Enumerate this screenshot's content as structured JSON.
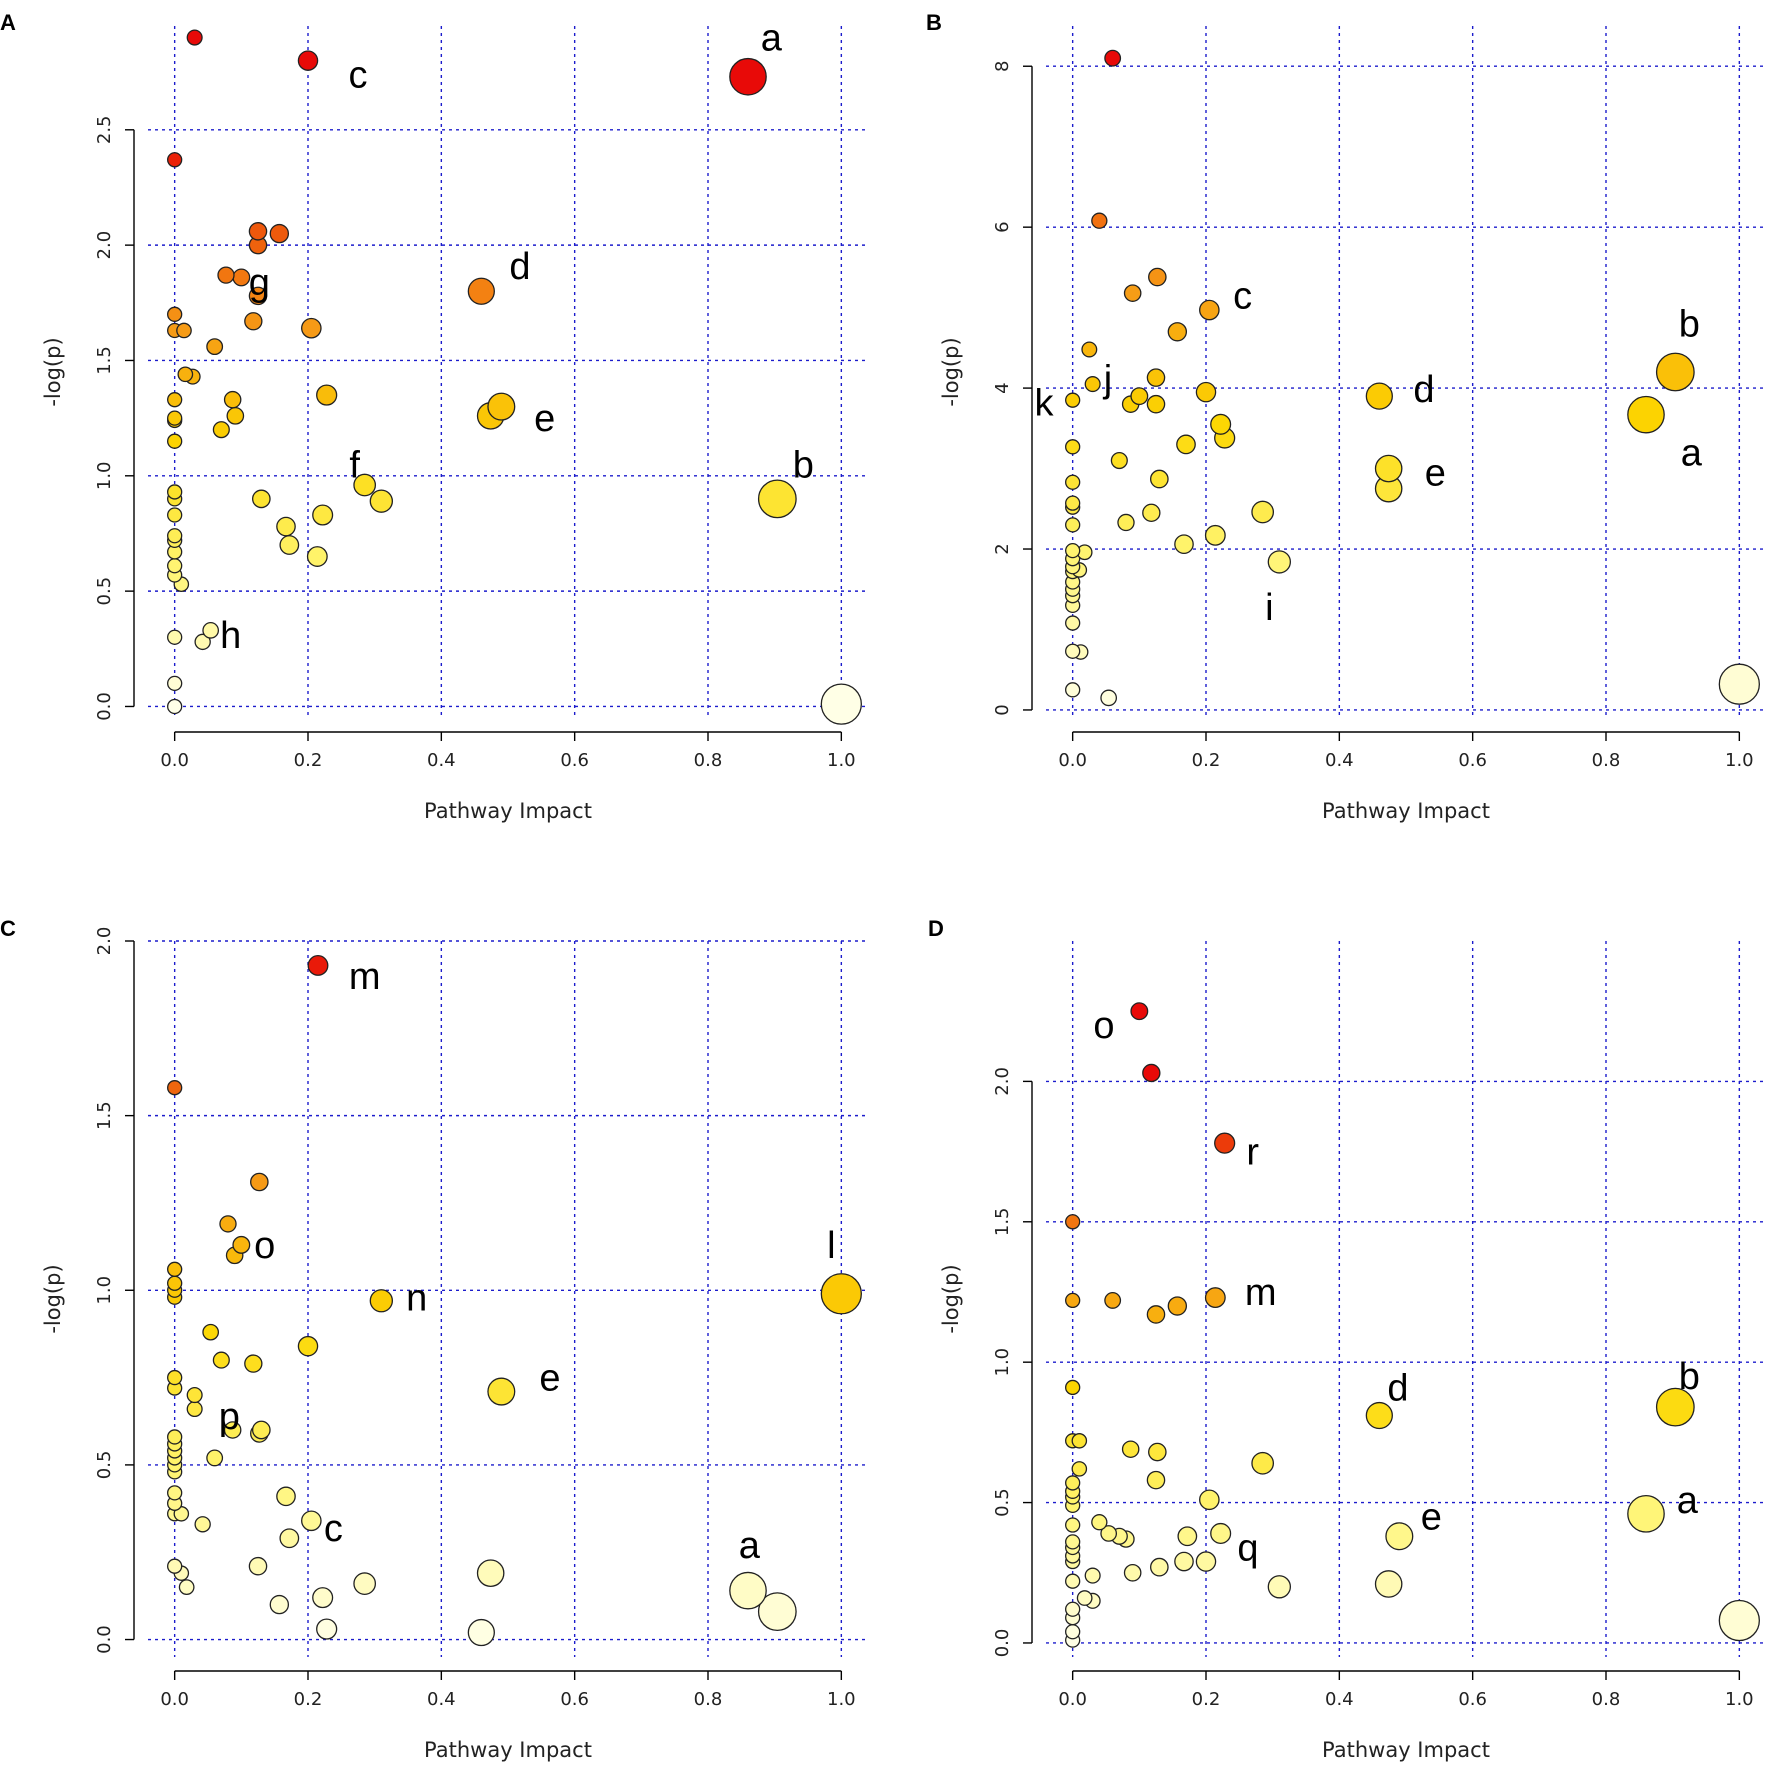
{
  "chart_data": [
    {
      "panel": "A",
      "type": "scatter",
      "xlabel": "Pathway Impact",
      "ylabel": "-log(p)",
      "xlim": [
        -0.04,
        1.04
      ],
      "ylim": [
        -0.05,
        2.95
      ],
      "xticks": [
        "0.0",
        "0.2",
        "0.4",
        "0.6",
        "0.8",
        "1.0"
      ],
      "yticks": [
        "0.0",
        "0.5",
        "1.0",
        "1.5",
        "2.0",
        "2.5"
      ],
      "xtick_values": [
        0,
        0.2,
        0.4,
        0.6,
        0.8,
        1.0
      ],
      "ytick_values": [
        0,
        0.5,
        1.0,
        1.5,
        2.0,
        2.5
      ],
      "points": [
        {
          "x": 0.03,
          "y": 2.9
        },
        {
          "x": 0.2,
          "y": 2.8
        },
        {
          "x": 0.86,
          "y": 2.73
        },
        {
          "x": 0.0,
          "y": 2.37
        },
        {
          "x": 0.125,
          "y": 2.06
        },
        {
          "x": 0.157,
          "y": 2.05
        },
        {
          "x": 0.125,
          "y": 2.0
        },
        {
          "x": 0.077,
          "y": 1.87
        },
        {
          "x": 0.1,
          "y": 1.86
        },
        {
          "x": 0.125,
          "y": 1.78
        },
        {
          "x": 0.46,
          "y": 1.8
        },
        {
          "x": 0.0,
          "y": 1.7
        },
        {
          "x": 0.118,
          "y": 1.67
        },
        {
          "x": 0.205,
          "y": 1.64
        },
        {
          "x": 0.0,
          "y": 1.63
        },
        {
          "x": 0.014,
          "y": 1.63
        },
        {
          "x": 0.06,
          "y": 1.56
        },
        {
          "x": 0.016,
          "y": 1.44
        },
        {
          "x": 0.027,
          "y": 1.43
        },
        {
          "x": 0.0,
          "y": 1.33
        },
        {
          "x": 0.087,
          "y": 1.33
        },
        {
          "x": 0.228,
          "y": 1.35
        },
        {
          "x": 0.49,
          "y": 1.3
        },
        {
          "x": 0.474,
          "y": 1.26
        },
        {
          "x": 0.091,
          "y": 1.26
        },
        {
          "x": 0.0,
          "y": 1.25
        },
        {
          "x": 0.0,
          "y": 1.24
        },
        {
          "x": 0.07,
          "y": 1.2
        },
        {
          "x": 0.0,
          "y": 1.15
        },
        {
          "x": 0.285,
          "y": 0.96
        },
        {
          "x": 0.31,
          "y": 0.89
        },
        {
          "x": 0.904,
          "y": 0.9
        },
        {
          "x": 0.0,
          "y": 0.93
        },
        {
          "x": 0.0,
          "y": 0.9
        },
        {
          "x": 0.13,
          "y": 0.9
        },
        {
          "x": 0.0,
          "y": 0.83
        },
        {
          "x": 0.222,
          "y": 0.83
        },
        {
          "x": 0.167,
          "y": 0.78
        },
        {
          "x": 0.0,
          "y": 0.74
        },
        {
          "x": 0.0,
          "y": 0.72
        },
        {
          "x": 0.172,
          "y": 0.7
        },
        {
          "x": 0.0,
          "y": 0.67
        },
        {
          "x": 0.214,
          "y": 0.65
        },
        {
          "x": 0.0,
          "y": 0.61
        },
        {
          "x": 0.0,
          "y": 0.57
        },
        {
          "x": 0.01,
          "y": 0.53
        },
        {
          "x": 0.054,
          "y": 0.33
        },
        {
          "x": 0.0,
          "y": 0.3
        },
        {
          "x": 0.042,
          "y": 0.28
        },
        {
          "x": 0.0,
          "y": 0.1
        },
        {
          "x": 0.0,
          "y": 0.0
        },
        {
          "x": 1.0,
          "y": 0.01
        }
      ],
      "annotations": [
        {
          "text": "a",
          "x": 0.895,
          "y": 2.9
        },
        {
          "text": "c",
          "x": 0.275,
          "y": 2.74
        },
        {
          "text": "d",
          "x": 0.518,
          "y": 1.91
        },
        {
          "text": "g",
          "x": 0.127,
          "y": 1.84
        },
        {
          "text": "e",
          "x": 0.555,
          "y": 1.25
        },
        {
          "text": "f",
          "x": 0.27,
          "y": 1.05
        },
        {
          "text": "b",
          "x": 0.943,
          "y": 1.05
        },
        {
          "text": "h",
          "x": 0.084,
          "y": 0.31
        }
      ]
    },
    {
      "panel": "B",
      "type": "scatter",
      "xlabel": "Pathway Impact",
      "ylabel": "-log(p)",
      "xlim": [
        -0.04,
        1.04
      ],
      "ylim": [
        -0.1,
        8.5
      ],
      "xticks": [
        "0.0",
        "0.2",
        "0.4",
        "0.6",
        "0.8",
        "1.0"
      ],
      "yticks": [
        "0",
        "2",
        "4",
        "6",
        "8"
      ],
      "xtick_values": [
        0,
        0.2,
        0.4,
        0.6,
        0.8,
        1.0
      ],
      "ytick_values": [
        0,
        2,
        4,
        6,
        8
      ],
      "points": [
        {
          "x": 0.06,
          "y": 8.1
        },
        {
          "x": 0.04,
          "y": 6.08
        },
        {
          "x": 0.127,
          "y": 5.38
        },
        {
          "x": 0.09,
          "y": 5.18
        },
        {
          "x": 0.205,
          "y": 4.97
        },
        {
          "x": 0.157,
          "y": 4.7
        },
        {
          "x": 0.025,
          "y": 4.48
        },
        {
          "x": 0.904,
          "y": 4.2
        },
        {
          "x": 0.125,
          "y": 4.13
        },
        {
          "x": 0.03,
          "y": 4.05
        },
        {
          "x": 0.2,
          "y": 3.95
        },
        {
          "x": 0.1,
          "y": 3.9
        },
        {
          "x": 0.46,
          "y": 3.9
        },
        {
          "x": 0.0,
          "y": 3.85
        },
        {
          "x": 0.087,
          "y": 3.8
        },
        {
          "x": 0.125,
          "y": 3.8
        },
        {
          "x": 0.86,
          "y": 3.67
        },
        {
          "x": 0.222,
          "y": 3.55
        },
        {
          "x": 0.228,
          "y": 3.38
        },
        {
          "x": 0.17,
          "y": 3.3
        },
        {
          "x": 0.0,
          "y": 3.27
        },
        {
          "x": 0.07,
          "y": 3.1
        },
        {
          "x": 0.474,
          "y": 3.0
        },
        {
          "x": 0.13,
          "y": 2.87
        },
        {
          "x": 0.0,
          "y": 2.83
        },
        {
          "x": 0.474,
          "y": 2.75
        },
        {
          "x": 0.0,
          "y": 2.57
        },
        {
          "x": 0.0,
          "y": 2.52
        },
        {
          "x": 0.285,
          "y": 2.46
        },
        {
          "x": 0.118,
          "y": 2.45
        },
        {
          "x": 0.08,
          "y": 2.33
        },
        {
          "x": 0.0,
          "y": 2.3
        },
        {
          "x": 0.214,
          "y": 2.17
        },
        {
          "x": 0.167,
          "y": 2.06
        },
        {
          "x": 0.0,
          "y": 1.98
        },
        {
          "x": 0.018,
          "y": 1.96
        },
        {
          "x": 0.0,
          "y": 1.88
        },
        {
          "x": 0.31,
          "y": 1.84
        },
        {
          "x": 0.0,
          "y": 1.78
        },
        {
          "x": 0.01,
          "y": 1.74
        },
        {
          "x": 0.0,
          "y": 1.72
        },
        {
          "x": 0.0,
          "y": 1.59
        },
        {
          "x": 0.0,
          "y": 1.5
        },
        {
          "x": 0.0,
          "y": 1.42
        },
        {
          "x": 0.0,
          "y": 1.3
        },
        {
          "x": 0.0,
          "y": 1.08
        },
        {
          "x": 0.0,
          "y": 0.73
        },
        {
          "x": 0.012,
          "y": 0.72
        },
        {
          "x": 1.0,
          "y": 0.32
        },
        {
          "x": 0.0,
          "y": 0.25
        },
        {
          "x": 0.054,
          "y": 0.15
        }
      ],
      "annotations": [
        {
          "text": "c",
          "x": 0.255,
          "y": 5.15
        },
        {
          "text": "b",
          "x": 0.925,
          "y": 4.8
        },
        {
          "text": "j",
          "x": 0.053,
          "y": 4.12
        },
        {
          "text": "d",
          "x": 0.527,
          "y": 3.99
        },
        {
          "text": "k",
          "x": -0.043,
          "y": 3.82
        },
        {
          "text": "a",
          "x": 0.928,
          "y": 3.2
        },
        {
          "text": "e",
          "x": 0.544,
          "y": 2.95
        },
        {
          "text": "i",
          "x": 0.295,
          "y": 1.28
        }
      ]
    },
    {
      "panel": "C",
      "type": "scatter",
      "xlabel": "Pathway Impact",
      "ylabel": "-log(p)",
      "xlim": [
        -0.04,
        1.04
      ],
      "ylim": [
        -0.05,
        2.0
      ],
      "xticks": [
        "0.0",
        "0.2",
        "0.4",
        "0.6",
        "0.8",
        "1.0"
      ],
      "yticks": [
        "0.0",
        "0.5",
        "1.0",
        "1.5",
        "2.0"
      ],
      "xtick_values": [
        0,
        0.2,
        0.4,
        0.6,
        0.8,
        1.0
      ],
      "ytick_values": [
        0,
        0.5,
        1.0,
        1.5,
        2.0
      ],
      "points": [
        {
          "x": 0.215,
          "y": 1.93
        },
        {
          "x": 0.0,
          "y": 1.58
        },
        {
          "x": 0.127,
          "y": 1.31
        },
        {
          "x": 0.08,
          "y": 1.19
        },
        {
          "x": 0.1,
          "y": 1.13
        },
        {
          "x": 0.09,
          "y": 1.1
        },
        {
          "x": 0.0,
          "y": 1.06
        },
        {
          "x": 0.0,
          "y": 1.02
        },
        {
          "x": 0.0,
          "y": 1.0
        },
        {
          "x": 0.0,
          "y": 0.98
        },
        {
          "x": 1.0,
          "y": 0.99
        },
        {
          "x": 0.31,
          "y": 0.97
        },
        {
          "x": 0.054,
          "y": 0.88
        },
        {
          "x": 0.2,
          "y": 0.84
        },
        {
          "x": 0.07,
          "y": 0.8
        },
        {
          "x": 0.118,
          "y": 0.79
        },
        {
          "x": 0.0,
          "y": 0.75
        },
        {
          "x": 0.0,
          "y": 0.72
        },
        {
          "x": 0.49,
          "y": 0.71
        },
        {
          "x": 0.03,
          "y": 0.7
        },
        {
          "x": 0.03,
          "y": 0.66
        },
        {
          "x": 0.13,
          "y": 0.6
        },
        {
          "x": 0.087,
          "y": 0.6
        },
        {
          "x": 0.127,
          "y": 0.59
        },
        {
          "x": 0.0,
          "y": 0.58
        },
        {
          "x": 0.0,
          "y": 0.56
        },
        {
          "x": 0.0,
          "y": 0.54
        },
        {
          "x": 0.0,
          "y": 0.52
        },
        {
          "x": 0.06,
          "y": 0.52
        },
        {
          "x": 0.0,
          "y": 0.5
        },
        {
          "x": 0.0,
          "y": 0.48
        },
        {
          "x": 0.0,
          "y": 0.42
        },
        {
          "x": 0.167,
          "y": 0.41
        },
        {
          "x": 0.0,
          "y": 0.39
        },
        {
          "x": 0.0,
          "y": 0.36
        },
        {
          "x": 0.01,
          "y": 0.36
        },
        {
          "x": 0.205,
          "y": 0.34
        },
        {
          "x": 0.042,
          "y": 0.33
        },
        {
          "x": 0.172,
          "y": 0.29
        },
        {
          "x": 0.0,
          "y": 0.21
        },
        {
          "x": 0.125,
          "y": 0.21
        },
        {
          "x": 0.474,
          "y": 0.19
        },
        {
          "x": 0.01,
          "y": 0.19
        },
        {
          "x": 0.285,
          "y": 0.16
        },
        {
          "x": 0.018,
          "y": 0.15
        },
        {
          "x": 0.86,
          "y": 0.14
        },
        {
          "x": 0.222,
          "y": 0.12
        },
        {
          "x": 0.157,
          "y": 0.1
        },
        {
          "x": 0.904,
          "y": 0.08
        },
        {
          "x": 0.228,
          "y": 0.03
        },
        {
          "x": 0.46,
          "y": 0.02
        }
      ],
      "annotations": [
        {
          "text": "m",
          "x": 0.285,
          "y": 1.9
        },
        {
          "text": "l",
          "x": 0.985,
          "y": 1.13
        },
        {
          "text": "o",
          "x": 0.135,
          "y": 1.13
        },
        {
          "text": "n",
          "x": 0.363,
          "y": 0.98
        },
        {
          "text": "e",
          "x": 0.563,
          "y": 0.75
        },
        {
          "text": "p",
          "x": 0.082,
          "y": 0.64
        },
        {
          "text": "c",
          "x": 0.238,
          "y": 0.32
        },
        {
          "text": "a",
          "x": 0.862,
          "y": 0.27
        }
      ]
    },
    {
      "panel": "D",
      "type": "scatter",
      "xlabel": "Pathway Impact",
      "ylabel": "-log(p)",
      "xlim": [
        -0.04,
        1.04
      ],
      "ylim": [
        -0.05,
        2.5
      ],
      "xticks": [
        "0.0",
        "0.2",
        "0.4",
        "0.6",
        "0.8",
        "1.0"
      ],
      "yticks": [
        "0.0",
        "0.5",
        "1.0",
        "1.5",
        "2.0"
      ],
      "xtick_values": [
        0,
        0.2,
        0.4,
        0.6,
        0.8,
        1.0
      ],
      "ytick_values": [
        0,
        0.5,
        1.0,
        1.5,
        2.0
      ],
      "points": [
        {
          "x": 0.1,
          "y": 2.25
        },
        {
          "x": 0.118,
          "y": 2.03
        },
        {
          "x": 0.228,
          "y": 1.78
        },
        {
          "x": 0.0,
          "y": 1.5
        },
        {
          "x": 0.214,
          "y": 1.23
        },
        {
          "x": 0.0,
          "y": 1.22
        },
        {
          "x": 0.06,
          "y": 1.22
        },
        {
          "x": 0.157,
          "y": 1.2
        },
        {
          "x": 0.125,
          "y": 1.17
        },
        {
          "x": 0.0,
          "y": 0.91
        },
        {
          "x": 0.904,
          "y": 0.84
        },
        {
          "x": 0.46,
          "y": 0.81
        },
        {
          "x": 0.0,
          "y": 0.72
        },
        {
          "x": 0.01,
          "y": 0.72
        },
        {
          "x": 0.087,
          "y": 0.69
        },
        {
          "x": 0.127,
          "y": 0.68
        },
        {
          "x": 0.285,
          "y": 0.64
        },
        {
          "x": 0.01,
          "y": 0.62
        },
        {
          "x": 0.125,
          "y": 0.58
        },
        {
          "x": 0.0,
          "y": 0.57
        },
        {
          "x": 0.0,
          "y": 0.54
        },
        {
          "x": 0.0,
          "y": 0.52
        },
        {
          "x": 0.205,
          "y": 0.51
        },
        {
          "x": 0.0,
          "y": 0.49
        },
        {
          "x": 0.86,
          "y": 0.46
        },
        {
          "x": 0.04,
          "y": 0.43
        },
        {
          "x": 0.0,
          "y": 0.42
        },
        {
          "x": 0.222,
          "y": 0.39
        },
        {
          "x": 0.054,
          "y": 0.39
        },
        {
          "x": 0.49,
          "y": 0.38
        },
        {
          "x": 0.172,
          "y": 0.38
        },
        {
          "x": 0.07,
          "y": 0.38
        },
        {
          "x": 0.08,
          "y": 0.37
        },
        {
          "x": 0.0,
          "y": 0.36
        },
        {
          "x": 0.0,
          "y": 0.34
        },
        {
          "x": 0.0,
          "y": 0.31
        },
        {
          "x": 0.0,
          "y": 0.29
        },
        {
          "x": 0.2,
          "y": 0.29
        },
        {
          "x": 0.167,
          "y": 0.29
        },
        {
          "x": 0.13,
          "y": 0.27
        },
        {
          "x": 0.09,
          "y": 0.25
        },
        {
          "x": 0.03,
          "y": 0.24
        },
        {
          "x": 0.0,
          "y": 0.22
        },
        {
          "x": 0.474,
          "y": 0.21
        },
        {
          "x": 0.31,
          "y": 0.2
        },
        {
          "x": 0.018,
          "y": 0.16
        },
        {
          "x": 0.03,
          "y": 0.15
        },
        {
          "x": 0.0,
          "y": 0.12
        },
        {
          "x": 0.0,
          "y": 0.09
        },
        {
          "x": 1.0,
          "y": 0.08
        },
        {
          "x": 0.0,
          "y": 0.04
        },
        {
          "x": 0.0,
          "y": 0.01
        }
      ],
      "annotations": [
        {
          "text": "o",
          "x": 0.047,
          "y": 2.2
        },
        {
          "text": "r",
          "x": 0.27,
          "y": 1.75
        },
        {
          "text": "m",
          "x": 0.282,
          "y": 1.25
        },
        {
          "text": "d",
          "x": 0.488,
          "y": 0.91
        },
        {
          "text": "b",
          "x": 0.925,
          "y": 0.95
        },
        {
          "text": "a",
          "x": 0.922,
          "y": 0.51
        },
        {
          "text": "e",
          "x": 0.538,
          "y": 0.45
        },
        {
          "text": "q",
          "x": 0.263,
          "y": 0.34
        }
      ]
    }
  ]
}
